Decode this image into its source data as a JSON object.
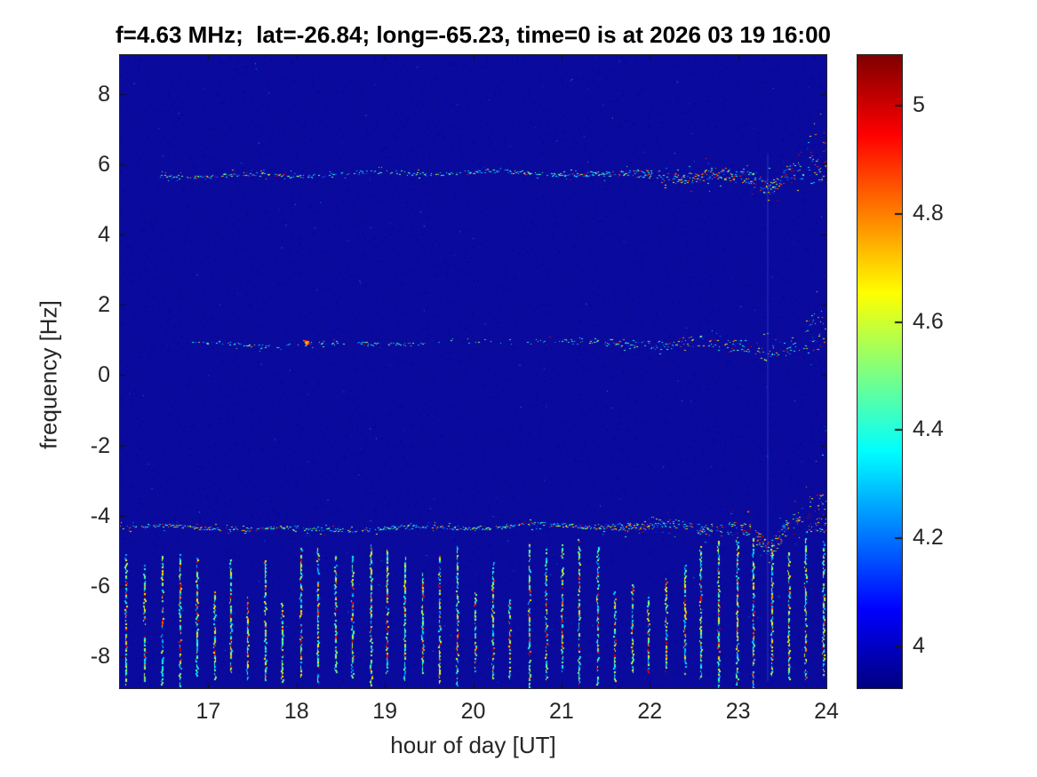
{
  "chart_data": {
    "type": "heatmap",
    "title": "f=4.63 MHz;  lat=-26.84; long=-65.23, time=0 is at 2026 03 19 16:00",
    "xlabel": "hour of day [UT]",
    "ylabel": "frequency [Hz]",
    "xlim": [
      16,
      24
    ],
    "ylim": [
      -8.9,
      9.1
    ],
    "xticks": [
      17,
      18,
      19,
      20,
      21,
      22,
      23,
      24
    ],
    "yticks": [
      8,
      6,
      4,
      2,
      0,
      -2,
      -4,
      -6,
      -8
    ],
    "colormap": "jet",
    "grid": false,
    "background_color": "#0a0a9d",
    "axis_color": "#262626",
    "colorbar": {
      "ticks": [
        5,
        4.8,
        4.6,
        4.4,
        4.2,
        4
      ],
      "vmin": 3.921,
      "vmax": 5.092,
      "position": "right"
    },
    "doppler_traces": [
      {
        "name": "upper-doppler-trace",
        "base_hz": 5.72,
        "x_start": 16.45,
        "x_end": 24.0,
        "dip_hour": 23.35,
        "dip_depth": 0.45,
        "end_rise_hz": 0.55,
        "density": 0.85,
        "hot_early": true,
        "hot_late_scale": 1.0,
        "sparse": [
          18.2,
          19.9,
          0.55
        ]
      },
      {
        "name": "middle-doppler-trace",
        "base_hz": 0.92,
        "x_start": 16.8,
        "x_end": 24.0,
        "dip_hour": 23.3,
        "dip_depth": 0.3,
        "end_rise_hz": 0.35,
        "density": 0.5,
        "hot_early": false,
        "hot_late_scale": 0.55,
        "sparse": [
          19.3,
          20.7,
          0.3
        ],
        "hot_spot": {
          "hour": 18.08,
          "hz": 0.95
        }
      },
      {
        "name": "lower-doppler-trace",
        "base_hz": -4.32,
        "x_start": 16.0,
        "x_end": 24.0,
        "dip_hour": 23.35,
        "dip_depth": 0.5,
        "end_rise_hz": 0.55,
        "density": 0.95,
        "hot_early": true,
        "hot_late_scale": 1.0,
        "sparse": null
      }
    ],
    "vertical_stripes": {
      "x_start": 16.07,
      "x_end": 24.0,
      "spacing_hours": 0.197,
      "bottom_hz": -8.9,
      "top_hz_early": -5.35,
      "top_hz_mid": -5.1,
      "top_hz_late": -4.88
    },
    "faint_column_hour": 23.33
  }
}
